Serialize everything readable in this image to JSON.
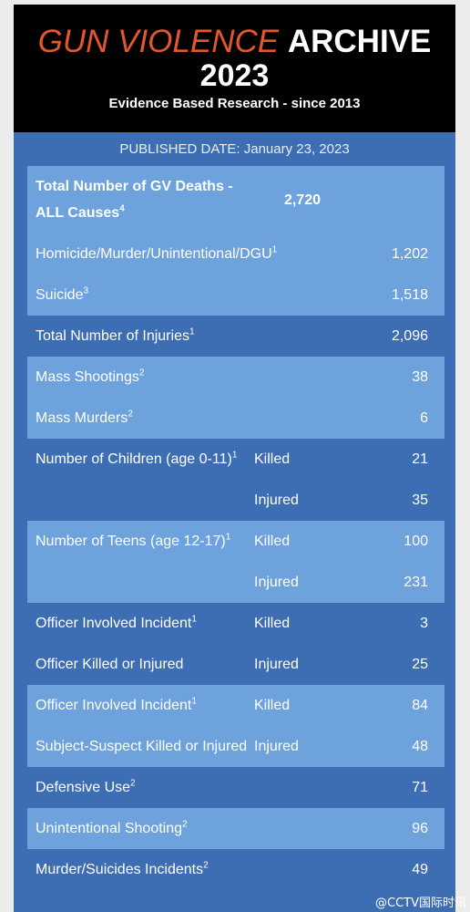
{
  "header": {
    "title_part1": "GUN VIOLENCE",
    "title_part2": "ARCHIVE",
    "year": "2023",
    "subtitle": "Evidence Based Research - since 2013"
  },
  "published": "PUBLISHED DATE: January 23, 2023",
  "sections": [
    {
      "rows": [
        {
          "label": "Total Number of GV Deaths - ALL Causes",
          "sup": "4",
          "value": "2,720"
        },
        {
          "label": "Homicide/Murder/Unintentional/DGU",
          "sup": "1",
          "value": "1,202"
        },
        {
          "label": "Suicide",
          "sup": "3",
          "value": "1,518"
        }
      ]
    },
    {
      "rows": [
        {
          "label": "Total Number of Injuries",
          "sup": "1",
          "value": "2,096"
        }
      ]
    },
    {
      "rows": [
        {
          "label": "Mass Shootings",
          "sup": "2",
          "value": "38"
        },
        {
          "label": "Mass Murders",
          "sup": "2",
          "value": "6"
        }
      ]
    },
    {
      "rows": [
        {
          "label": "Number of Children (age 0-11)",
          "sup": "1",
          "kind": "Killed",
          "value": "21"
        },
        {
          "kind": "Injured",
          "value": "35"
        }
      ]
    },
    {
      "rows": [
        {
          "label": "Number of Teens (age 12-17)",
          "sup": "1",
          "kind": "Killed",
          "value": "100"
        },
        {
          "kind": "Injured",
          "value": "231"
        }
      ]
    },
    {
      "rows": [
        {
          "label": "Officer Involved Incident",
          "sup": "1",
          "kind": "Killed",
          "value": "3"
        },
        {
          "label": "Officer Killed or Injured",
          "kind": "Injured",
          "value": "25"
        }
      ]
    },
    {
      "rows": [
        {
          "label": "Officer Involved Incident",
          "sup": "1",
          "kind": "Killed",
          "value": "84"
        },
        {
          "label": "Subject-Suspect Killed or Injured",
          "kind": "Injured",
          "value": "48"
        }
      ]
    },
    {
      "rows": [
        {
          "label": "Defensive Use",
          "sup": "2",
          "value": "71"
        }
      ]
    },
    {
      "rows": [
        {
          "label": "Unintentional Shooting",
          "sup": "2",
          "value": "96"
        }
      ]
    },
    {
      "rows": [
        {
          "label": "Murder/Suicides Incidents",
          "sup": "2",
          "value": "49"
        }
      ]
    }
  ],
  "watermark": "@CCTV国际时讯"
}
